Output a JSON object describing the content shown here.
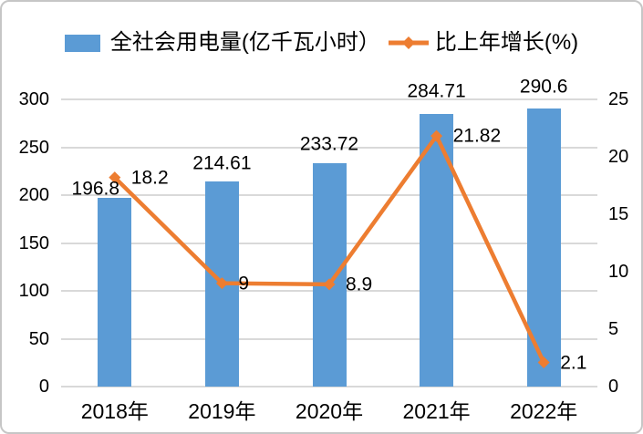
{
  "colors": {
    "bar": "#5B9BD5",
    "line": "#ED7D31",
    "gridline": "#D9D9D9",
    "text": "#000000",
    "border": "#C6C6C6",
    "background": "#FFFFFF"
  },
  "legend": {
    "bar_label": "全社会用电量(亿千瓦小时）",
    "line_label": "比上年增长(%)"
  },
  "chart_data": {
    "type": "bar+line",
    "title": "",
    "categories": [
      "2018年",
      "2019年",
      "2020年",
      "2021年",
      "2022年"
    ],
    "series": [
      {
        "name": "全社会用电量(亿千瓦小时）",
        "type": "bar",
        "axis": "left",
        "color": "#5B9BD5",
        "values": [
          196.8,
          214.61,
          233.72,
          284.71,
          290.6
        ],
        "labels": [
          "196.8",
          "214.61",
          "233.72",
          "284.71",
          "290.6"
        ]
      },
      {
        "name": "比上年增长(%)",
        "type": "line",
        "axis": "right",
        "color": "#ED7D31",
        "marker": "diamond",
        "values": [
          18.2,
          9,
          8.9,
          21.82,
          2.1
        ],
        "labels": [
          "18.2",
          "9",
          "8.9",
          "21.82",
          "2.1"
        ]
      }
    ],
    "left_axis": {
      "min": 0,
      "max": 300,
      "step": 50,
      "ticks": [
        "0",
        "50",
        "100",
        "150",
        "200",
        "250",
        "300"
      ]
    },
    "right_axis": {
      "min": 0,
      "max": 25,
      "step": 5,
      "ticks": [
        "0",
        "5",
        "10",
        "15",
        "20",
        "25"
      ]
    },
    "grid": true,
    "legend_position": "top",
    "data_labels": true
  }
}
